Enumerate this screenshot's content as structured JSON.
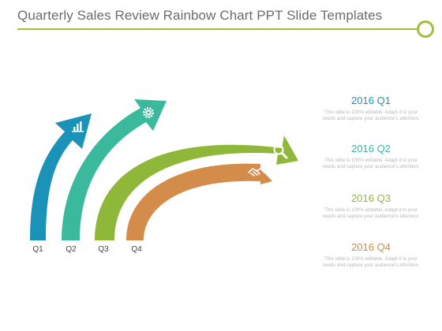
{
  "title": "Quarterly Sales Review Rainbow Chart PPT Slide Templates",
  "colors": {
    "accent": "#9dc23a",
    "q1": "#1b92b7",
    "q2": "#3ab99d",
    "q3": "#8fb83a",
    "q4": "#d48c4a"
  },
  "arrows": [
    {
      "label": "Q1",
      "color": "#1b92b7",
      "icon": "bar-chart-icon"
    },
    {
      "label": "Q2",
      "color": "#3ab99d",
      "icon": "gear-icon"
    },
    {
      "label": "Q3",
      "color": "#8fb83a",
      "icon": "magnifier-icon"
    },
    {
      "label": "Q4",
      "color": "#d48c4a",
      "icon": "handshake-icon"
    }
  ],
  "panels": [
    {
      "heading": "2016 Q1",
      "color": "#1b92b7",
      "text": "This slide is 100% editable. Adapt it to your needs and capture your audience's attention."
    },
    {
      "heading": "2016 Q2",
      "color": "#3ab99d",
      "text": "This slide is 100% editable. Adapt it to your needs and capture your audience's attention."
    },
    {
      "heading": "2016 Q3",
      "color": "#8fb83a",
      "text": "This slide is 100% editable. Adapt it to your needs and capture your audience's attention."
    },
    {
      "heading": "2016 Q4",
      "color": "#d48c4a",
      "text": "This slide is 100% editable. Adapt it to your needs and capture your audience's attention."
    }
  ]
}
